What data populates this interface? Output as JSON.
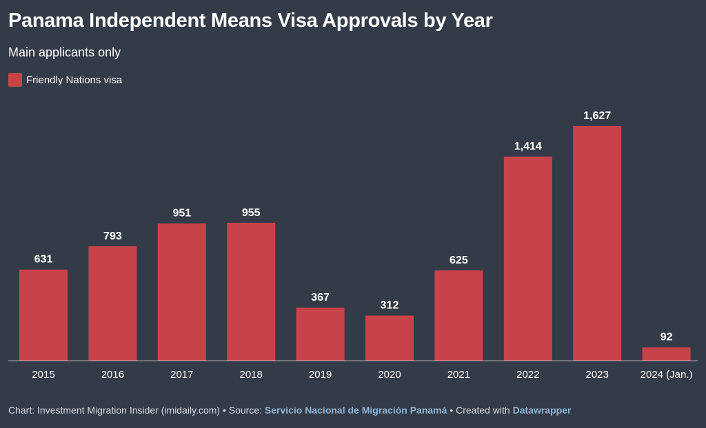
{
  "colors": {
    "background": "#343b48",
    "bar": "#c8424a",
    "text": "#ffffff",
    "axis": "#c9ccd2",
    "link": "#8fb4d4"
  },
  "chart_data": {
    "type": "bar",
    "title": "Panama Independent Means Visa Approvals by Year",
    "subtitle": "Main applicants only",
    "legend": [
      {
        "name": "Friendly Nations visa",
        "color": "#c8424a"
      }
    ],
    "categories": [
      "2015",
      "2016",
      "2017",
      "2018",
      "2019",
      "2020",
      "2021",
      "2022",
      "2023",
      "2024 (Jan.)"
    ],
    "series": [
      {
        "name": "Friendly Nations visa",
        "values": [
          631,
          793,
          951,
          955,
          367,
          312,
          625,
          1414,
          1627,
          92
        ],
        "labels": [
          "631",
          "793",
          "951",
          "955",
          "367",
          "312",
          "625",
          "1,414",
          "1,627",
          "92"
        ]
      }
    ],
    "xlabel": "",
    "ylabel": "",
    "ylim": [
      0,
      1627
    ],
    "grid": false
  },
  "footer": {
    "prefix": "Chart: Investment Migration Insider (imidaily.com) • Source: ",
    "source": "Servicio Nacional de Migración Panamá",
    "middle": " • Created with ",
    "tool": "Datawrapper"
  }
}
